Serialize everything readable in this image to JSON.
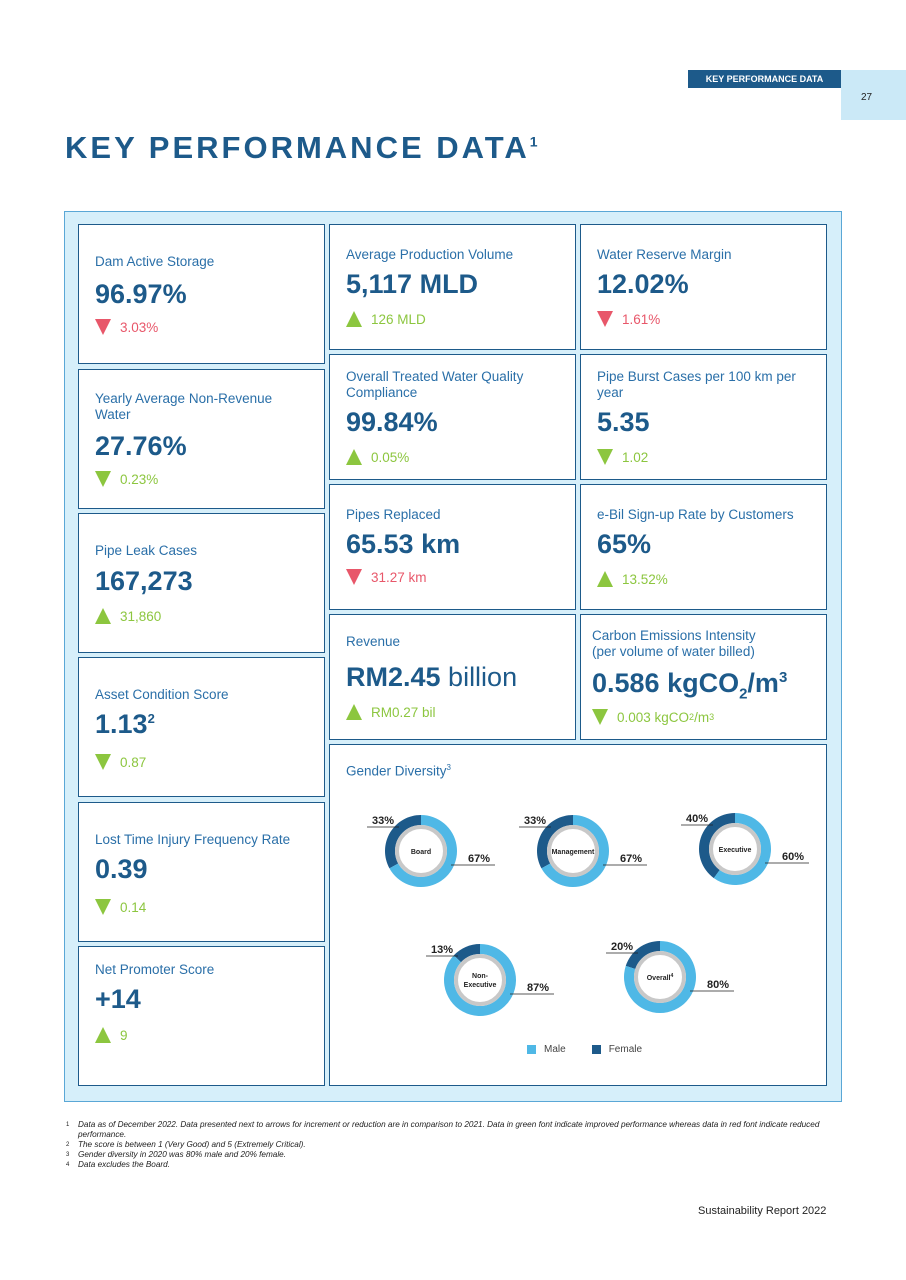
{
  "header": {
    "section_tag": "KEY PERFORMANCE DATA",
    "page_number": "27"
  },
  "title": {
    "text": "KEY PERFORMANCE DATA",
    "footnote_ref": "1"
  },
  "colors": {
    "green": "#8cc63f",
    "red": "#e8576a",
    "male": "#4fb8e6",
    "female": "#1d5a8a",
    "brand": "#1d5a8a"
  },
  "cards": {
    "dam": {
      "label": "Dam Active Storage",
      "value": "96.97%",
      "change": "3.03%",
      "dir": "down",
      "color": "red"
    },
    "nrw": {
      "label": "Yearly Average Non-Revenue Water",
      "value": "27.76%",
      "change": "0.23%",
      "dir": "down",
      "color": "green"
    },
    "leak": {
      "label": "Pipe Leak Cases",
      "value": "167,273",
      "change": "31,860",
      "dir": "up",
      "color": "green"
    },
    "asset": {
      "label": "Asset Condition Score",
      "value": "1.13",
      "value_sup": "2",
      "change": "0.87",
      "dir": "down",
      "color": "green"
    },
    "ltifr": {
      "label": "Lost Time Injury Frequency Rate",
      "value": "0.39",
      "change": "0.14",
      "dir": "down",
      "color": "green"
    },
    "nps": {
      "label": "Net Promoter Score",
      "value": "+14",
      "change": "9",
      "dir": "up",
      "color": "green"
    },
    "prod": {
      "label": "Average Production Volume",
      "value": "5,117 MLD",
      "change": "126 MLD",
      "dir": "up",
      "color": "green"
    },
    "wrm": {
      "label": "Water Reserve Margin",
      "value": "12.02%",
      "change": "1.61%",
      "dir": "down",
      "color": "red"
    },
    "quality": {
      "label": "Overall Treated Water Quality Compliance",
      "value": "99.84%",
      "change": "0.05%",
      "dir": "up",
      "color": "green"
    },
    "burst": {
      "label": "Pipe Burst Cases per 100 km per year",
      "value": "5.35",
      "change": "1.02",
      "dir": "down",
      "color": "green"
    },
    "pipes": {
      "label": "Pipes Replaced",
      "value": "65.53 km",
      "change": "31.27 km",
      "dir": "down",
      "color": "red"
    },
    "ebil": {
      "label": "e-Bil Sign-up Rate by Customers",
      "value": "65%",
      "change": "13.52%",
      "dir": "up",
      "color": "green"
    },
    "revenue": {
      "label": "Revenue",
      "value_bold": "RM2.45",
      "value_thin": " billion",
      "change": "RM0.27 bil",
      "dir": "up",
      "color": "green"
    },
    "carbon": {
      "label1": "Carbon Emissions Intensity",
      "label2": "(per volume of water billed)",
      "value_pre": "0.586 kgCO",
      "value_sub": "2",
      "value_mid": "/m",
      "value_sup": "3",
      "change_pre": "0.003 kgCO",
      "change_sub": "2",
      "change_mid": "/m",
      "change_sup": "3",
      "dir": "down",
      "color": "green"
    }
  },
  "gender": {
    "title": "Gender Diversity",
    "title_sup": "3",
    "legend": {
      "male": "Male",
      "female": "Female"
    },
    "donuts": [
      {
        "name": "Board",
        "sup": "",
        "female": 33,
        "male": 67,
        "female_label": "33%",
        "male_label": "67%"
      },
      {
        "name": "Management",
        "sup": "",
        "female": 33,
        "male": 67,
        "female_label": "33%",
        "male_label": "67%"
      },
      {
        "name": "Executive",
        "sup": "",
        "female": 40,
        "male": 60,
        "female_label": "40%",
        "male_label": "60%"
      },
      {
        "name": "Non-Executive",
        "sup": "",
        "female": 13,
        "male": 87,
        "female_label": "13%",
        "male_label": "87%"
      },
      {
        "name": "Overall",
        "sup": "4",
        "female": 20,
        "male": 80,
        "female_label": "20%",
        "male_label": "80%"
      }
    ]
  },
  "footnotes": [
    {
      "n": "1",
      "text": "Data as of December 2022. Data presented next to arrows for increment or reduction are in comparison to 2021. Data in green font indicate improved performance whereas data in red font indicate reduced performance."
    },
    {
      "n": "2",
      "text": "The score is between 1 (Very Good) and 5 (Extremely Critical)."
    },
    {
      "n": "3",
      "text": "Gender diversity in 2020 was 80% male and 20% female."
    },
    {
      "n": "4",
      "text": "Data excludes the Board."
    }
  ],
  "footer": "Sustainability Report 2022"
}
